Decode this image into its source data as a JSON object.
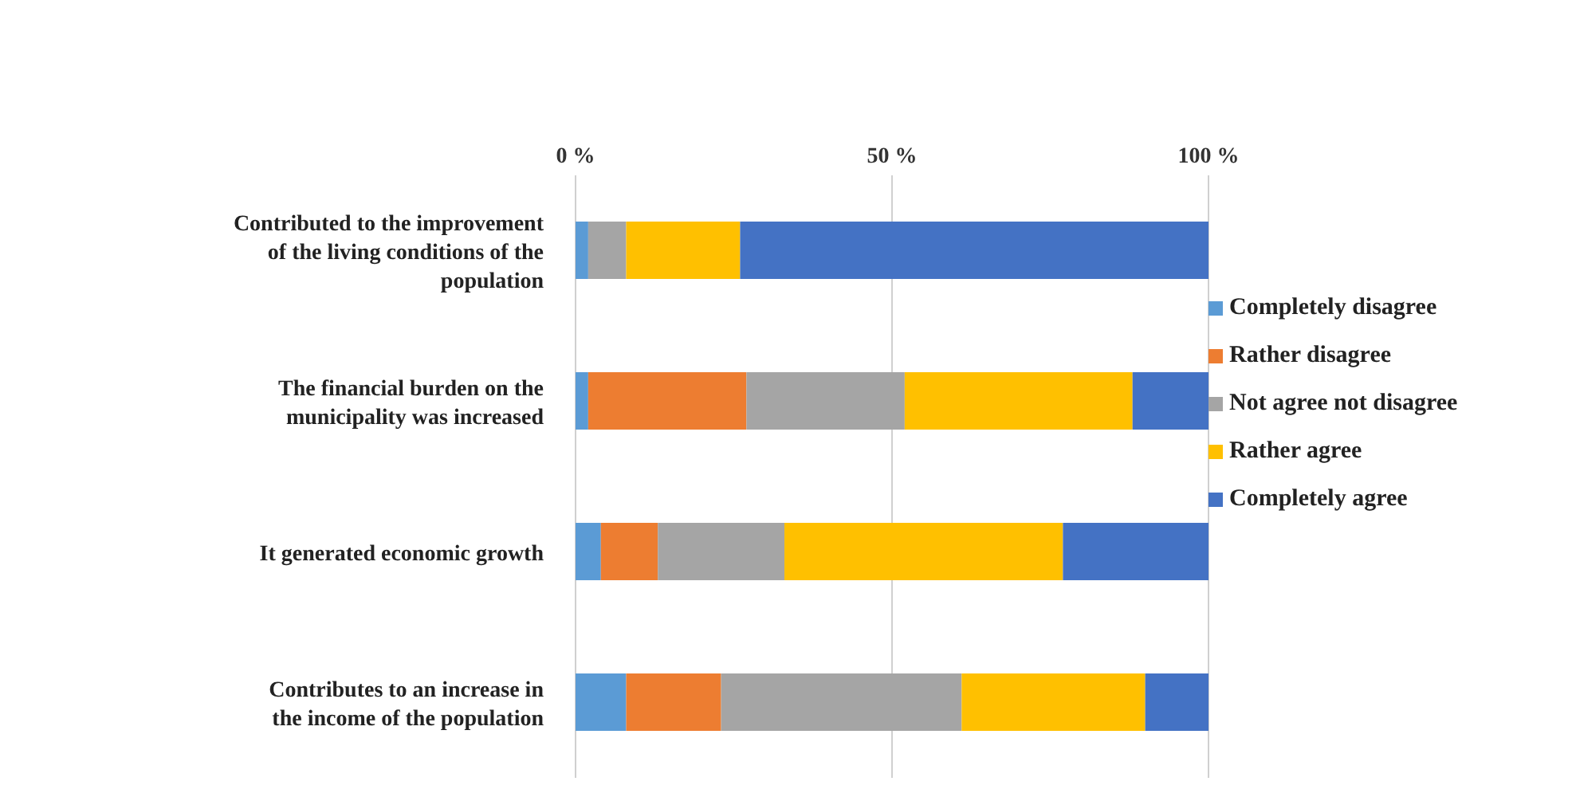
{
  "chart_data": {
    "type": "bar",
    "orientation": "horizontal",
    "stacked": true,
    "categories": [
      "Contributed to the improvement of the living conditions of the population",
      "The financial burden on the municipality was increased",
      "It generated economic growth",
      "Contributes to an increase in the income of the population"
    ],
    "series": [
      {
        "name": "Completely disagree",
        "color": "#5b9bd5",
        "values": [
          2,
          2,
          4,
          8
        ]
      },
      {
        "name": "Rather disagree",
        "color": "#ed7d31",
        "values": [
          0,
          25,
          9,
          15
        ]
      },
      {
        "name": "Not agree not disagree",
        "color": "#a5a5a5",
        "values": [
          6,
          25,
          20,
          38
        ]
      },
      {
        "name": "Rather agree",
        "color": "#ffc000",
        "values": [
          18,
          36,
          44,
          29
        ]
      },
      {
        "name": "Completely agree",
        "color": "#4472c4",
        "values": [
          74,
          12,
          23,
          10
        ]
      }
    ],
    "xlim": [
      0,
      100
    ],
    "xticks": [
      {
        "value": 0,
        "label": "0 %"
      },
      {
        "value": 50,
        "label": "50 %"
      },
      {
        "value": 100,
        "label": "100 %"
      }
    ],
    "grid": "x",
    "legend": "right"
  }
}
